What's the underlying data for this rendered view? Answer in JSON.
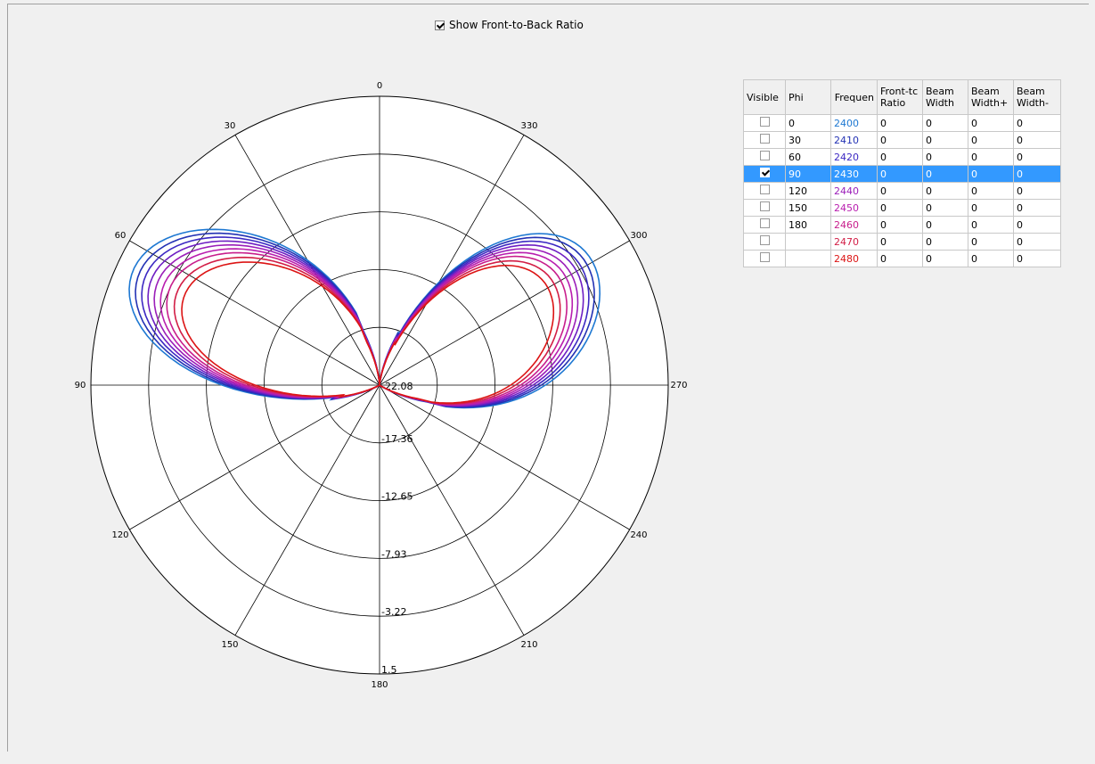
{
  "show_front_back": {
    "label": "Show Front-to-Back Ratio",
    "checked": true
  },
  "chart_data": {
    "type": "polar",
    "angle_labels": [
      {
        "deg": 0,
        "label": "0"
      },
      {
        "deg": 30,
        "label": "30"
      },
      {
        "deg": 60,
        "label": "60"
      },
      {
        "deg": 90,
        "label": "90"
      },
      {
        "deg": 120,
        "label": "120"
      },
      {
        "deg": 150,
        "label": "150"
      },
      {
        "deg": 180,
        "label": "180"
      },
      {
        "deg": 210,
        "label": "210"
      },
      {
        "deg": 240,
        "label": "240"
      },
      {
        "deg": 270,
        "label": "270"
      },
      {
        "deg": 300,
        "label": "300"
      },
      {
        "deg": 330,
        "label": "330"
      }
    ],
    "angle_direction": "counterclockwise from top",
    "radial_range": [
      -22.08,
      1.5
    ],
    "radial_labels": [
      "-22.08",
      "-17.36",
      "-12.65",
      "-7.93",
      "-3.22",
      "1.5"
    ],
    "series": [
      {
        "freq": "2400",
        "color": "#1e78d2",
        "scale": 1.0
      },
      {
        "freq": "2410",
        "color": "#2332b4",
        "scale": 0.975
      },
      {
        "freq": "2420",
        "color": "#3c28c3",
        "scale": 0.95
      },
      {
        "freq": "2430",
        "color": "#6e1ec3",
        "scale": 0.925
      },
      {
        "freq": "2440",
        "color": "#9b1eb9",
        "scale": 0.9
      },
      {
        "freq": "2450",
        "color": "#b91eaf",
        "scale": 0.875
      },
      {
        "freq": "2460",
        "color": "#c81e8c",
        "scale": 0.85
      },
      {
        "freq": "2470",
        "color": "#d21e46",
        "scale": 0.82
      },
      {
        "freq": "2480",
        "color": "#dc1414",
        "scale": 0.79
      }
    ]
  },
  "legend": {
    "headers": [
      "Visible",
      "Phi",
      "Frequen",
      "Front-tc Ratio",
      "Beam Width",
      "Beam Width+",
      "Beam Width-"
    ],
    "rows": [
      {
        "visible": false,
        "phi": "0",
        "freq": "2400",
        "color": "#1e78d2",
        "fbr": "0",
        "bw": "0",
        "bwp": "0",
        "bwm": "0"
      },
      {
        "visible": false,
        "phi": "30",
        "freq": "2410",
        "color": "#2332b4",
        "fbr": "0",
        "bw": "0",
        "bwp": "0",
        "bwm": "0"
      },
      {
        "visible": false,
        "phi": "60",
        "freq": "2420",
        "color": "#3c28c3",
        "fbr": "0",
        "bw": "0",
        "bwp": "0",
        "bwm": "0"
      },
      {
        "visible": true,
        "phi": "90",
        "freq": "2430",
        "color": "#6e1ec3",
        "fbr": "0",
        "bw": "0",
        "bwp": "0",
        "bwm": "0",
        "selected": true
      },
      {
        "visible": false,
        "phi": "120",
        "freq": "2440",
        "color": "#9b1eb9",
        "fbr": "0",
        "bw": "0",
        "bwp": "0",
        "bwm": "0"
      },
      {
        "visible": false,
        "phi": "150",
        "freq": "2450",
        "color": "#b91eaf",
        "fbr": "0",
        "bw": "0",
        "bwp": "0",
        "bwm": "0"
      },
      {
        "visible": false,
        "phi": "180",
        "freq": "2460",
        "color": "#c81e8c",
        "fbr": "0",
        "bw": "0",
        "bwp": "0",
        "bwm": "0"
      },
      {
        "visible": false,
        "phi": "",
        "freq": "2470",
        "color": "#d21e46",
        "fbr": "0",
        "bw": "0",
        "bwp": "0",
        "bwm": "0"
      },
      {
        "visible": false,
        "phi": "",
        "freq": "2480",
        "color": "#dc1414",
        "fbr": "0",
        "bw": "0",
        "bwp": "0",
        "bwm": "0"
      }
    ]
  }
}
